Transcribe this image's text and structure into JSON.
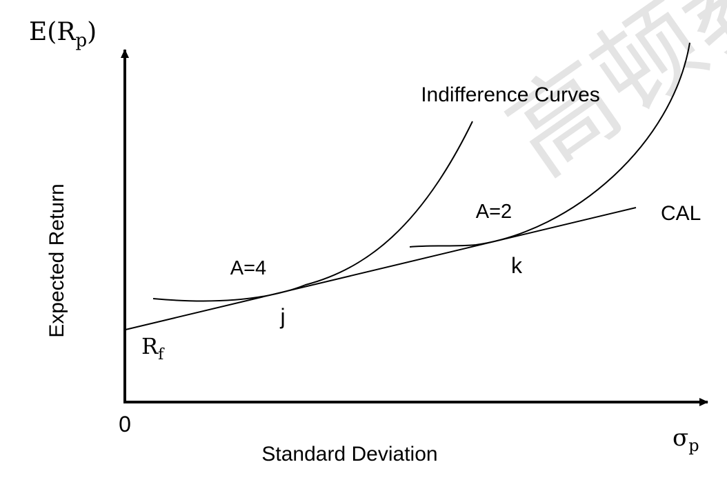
{
  "diagram": {
    "y_axis_symbol": {
      "base": "E(R",
      "sub": "p",
      "close": ")"
    },
    "x_axis_symbol": {
      "base": "σ",
      "sub": "p"
    },
    "y_axis_label": "Expected Return",
    "x_axis_label": "Standard Deviation",
    "origin_label": "0",
    "rf_label": {
      "base": "R",
      "sub": "f"
    },
    "indifference_title": "Indifference Curves",
    "cal_label": "CAL",
    "curve_a4_label": "A=4",
    "curve_a2_label": "A=2",
    "point_j_label": "j",
    "point_k_label": "k",
    "watermark_text": "高顿教",
    "line_color": "#000000"
  }
}
